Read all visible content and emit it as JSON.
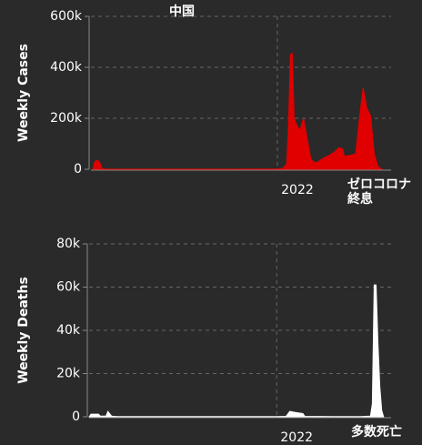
{
  "chart_data": [
    {
      "type": "area",
      "title": "中国",
      "y_label": "Weekly Cases",
      "annotation": [
        "ゼロコロナ",
        "終息"
      ],
      "x": [
        2020.02,
        2020.04,
        2020.06,
        2020.09,
        2020.12,
        2020.16,
        2020.3,
        2020.6,
        2021.0,
        2021.4,
        2021.8,
        2022.0,
        2022.06,
        2022.1,
        2022.12,
        2022.14,
        2022.16,
        2022.18,
        2022.2,
        2022.24,
        2022.28,
        2022.32,
        2022.36,
        2022.4,
        2022.44,
        2022.5,
        2022.56,
        2022.62,
        2022.66,
        2022.7,
        2022.72,
        2022.78,
        2022.84,
        2022.88,
        2022.92,
        2022.96,
        2023.0,
        2023.04,
        2023.08,
        2023.12
      ],
      "series": [
        {
          "name": "Weekly Cases",
          "color": "#e00000",
          "values": [
            0,
            28000,
            35000,
            30000,
            3000,
            500,
            300,
            400,
            500,
            600,
            800,
            1500,
            4000,
            20000,
            180000,
            450000,
            455000,
            200000,
            180000,
            150000,
            200000,
            120000,
            40000,
            25000,
            30000,
            45000,
            55000,
            70000,
            85000,
            80000,
            50000,
            55000,
            60000,
            200000,
            320000,
            240000,
            210000,
            60000,
            10000,
            0
          ]
        }
      ],
      "xlim": [
        2020.0,
        2023.22
      ],
      "xticks": [
        2022
      ],
      "ylim": [
        0,
        600000
      ],
      "yticks": [
        {
          "value": 0,
          "label": "0"
        },
        {
          "value": 200000,
          "label": "200k"
        },
        {
          "value": 400000,
          "label": "400k"
        },
        {
          "value": 600000,
          "label": "600k"
        }
      ],
      "grid": true
    },
    {
      "type": "area",
      "y_label": "Weekly Deaths",
      "annotation": [
        "多数死亡"
      ],
      "x": [
        2020.0,
        2020.02,
        2020.1,
        2020.12,
        2020.18,
        2020.2,
        2020.24,
        2020.3,
        2020.8,
        2021.4,
        2022.0,
        2022.1,
        2022.14,
        2022.2,
        2022.28,
        2022.3,
        2022.6,
        2022.9,
        2023.0,
        2023.02,
        2023.04,
        2023.06,
        2023.08,
        2023.1,
        2023.12,
        2023.14
      ],
      "series": [
        {
          "name": "Weekly Deaths",
          "color": "#ffffff",
          "values": [
            0,
            1200,
            1200,
            300,
            300,
            2500,
            300,
            100,
            100,
            100,
            100,
            200,
            2500,
            2000,
            1500,
            200,
            100,
            100,
            300,
            6000,
            61000,
            61000,
            34000,
            14000,
            3000,
            0
          ]
        }
      ],
      "xlim": [
        2020.0,
        2023.22
      ],
      "xticks": [
        2022
      ],
      "ylim": [
        0,
        80000
      ],
      "yticks": [
        {
          "value": 0,
          "label": "0"
        },
        {
          "value": 20000,
          "label": "20k"
        },
        {
          "value": 40000,
          "label": "40k"
        },
        {
          "value": 60000,
          "label": "60k"
        },
        {
          "value": 80000,
          "label": "80k"
        }
      ],
      "grid": true
    }
  ]
}
